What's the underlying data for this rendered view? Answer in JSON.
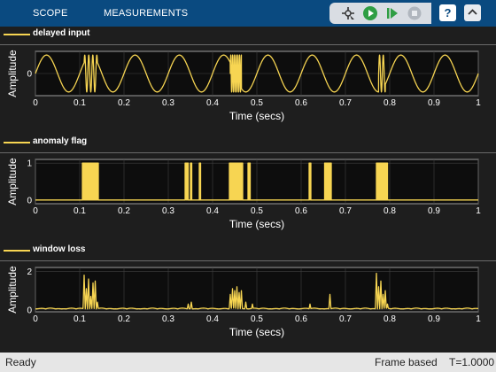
{
  "toolbar": {
    "tabs": [
      "SCOPE",
      "MEASUREMENTS"
    ],
    "help_label": "?"
  },
  "icons": [
    "highlight-signal-icon",
    "run-icon",
    "step-forward-icon",
    "stop-icon",
    "help-icon",
    "collapse-icon"
  ],
  "colors": {
    "toolbar_bg": "#0a4a80",
    "plot_bg": "#0d0d0d",
    "trace": "#f7d552",
    "grid": "#404040"
  },
  "status": {
    "left": "Ready",
    "mode": "Frame based",
    "time": "T=1.0000"
  },
  "chart_data": [
    {
      "type": "line",
      "legend": "delayed input",
      "xlabel": "Time (secs)",
      "ylabel": "Amplitude",
      "xlim": [
        0,
        1
      ],
      "ylim": [
        -1.2,
        1.2
      ],
      "xticks": [
        "0",
        "0.1",
        "0.2",
        "0.3",
        "0.4",
        "0.5",
        "0.6",
        "0.7",
        "0.8",
        "0.9",
        "1"
      ],
      "yticks": [
        "0"
      ],
      "grid": true,
      "signal": {
        "base_sine_frequency_hz": 10,
        "amplitude": 1,
        "bursts": [
          {
            "x_start": 0.11,
            "x_end": 0.14,
            "frequency_hz": 110,
            "amplitude": 1
          },
          {
            "x_start": 0.44,
            "x_end": 0.465,
            "frequency_hz": 250,
            "amplitude": 1
          },
          {
            "x_start": 0.775,
            "x_end": 0.79,
            "frequency_hz": 120,
            "amplitude": 1
          }
        ]
      }
    },
    {
      "type": "line",
      "legend": "anomaly flag",
      "xlabel": "Time (secs)",
      "ylabel": "Amplitude",
      "xlim": [
        0,
        1
      ],
      "ylim": [
        -0.1,
        1.1
      ],
      "xticks": [
        "0",
        "0.1",
        "0.2",
        "0.3",
        "0.4",
        "0.5",
        "0.6",
        "0.7",
        "0.8",
        "0.9",
        "1"
      ],
      "yticks": [
        "0",
        "1"
      ],
      "grid": true,
      "high_intervals": [
        [
          0.106,
          0.142
        ],
        [
          0.338,
          0.345
        ],
        [
          0.35,
          0.353
        ],
        [
          0.37,
          0.373
        ],
        [
          0.438,
          0.468
        ],
        [
          0.48,
          0.485
        ],
        [
          0.618,
          0.622
        ],
        [
          0.653,
          0.668
        ],
        [
          0.77,
          0.795
        ]
      ]
    },
    {
      "type": "line",
      "legend": "window loss",
      "xlabel": "Time (secs)",
      "ylabel": "Amplitude",
      "xlim": [
        0,
        1
      ],
      "ylim": [
        -0.1,
        2.2
      ],
      "xticks": [
        "0",
        "0.1",
        "0.2",
        "0.3",
        "0.4",
        "0.5",
        "0.6",
        "0.7",
        "0.8",
        "0.9",
        "1"
      ],
      "yticks": [
        "0",
        "2"
      ],
      "grid": true,
      "peaks": [
        {
          "x": 0.11,
          "y": 1.8
        },
        {
          "x": 0.115,
          "y": 1.1
        },
        {
          "x": 0.12,
          "y": 1.6
        },
        {
          "x": 0.125,
          "y": 0.7
        },
        {
          "x": 0.13,
          "y": 1.4
        },
        {
          "x": 0.135,
          "y": 1.5
        },
        {
          "x": 0.14,
          "y": 0.4
        },
        {
          "x": 0.345,
          "y": 0.3
        },
        {
          "x": 0.352,
          "y": 0.4
        },
        {
          "x": 0.44,
          "y": 0.8
        },
        {
          "x": 0.445,
          "y": 1.1
        },
        {
          "x": 0.45,
          "y": 1.0
        },
        {
          "x": 0.455,
          "y": 1.2
        },
        {
          "x": 0.46,
          "y": 0.9
        },
        {
          "x": 0.465,
          "y": 1.0
        },
        {
          "x": 0.475,
          "y": 0.4
        },
        {
          "x": 0.49,
          "y": 0.3
        },
        {
          "x": 0.62,
          "y": 0.3
        },
        {
          "x": 0.665,
          "y": 0.8
        },
        {
          "x": 0.77,
          "y": 1.9
        },
        {
          "x": 0.775,
          "y": 1.2
        },
        {
          "x": 0.78,
          "y": 1.5
        },
        {
          "x": 0.785,
          "y": 0.8
        },
        {
          "x": 0.79,
          "y": 1.0
        },
        {
          "x": 0.795,
          "y": 0.3
        }
      ]
    }
  ]
}
